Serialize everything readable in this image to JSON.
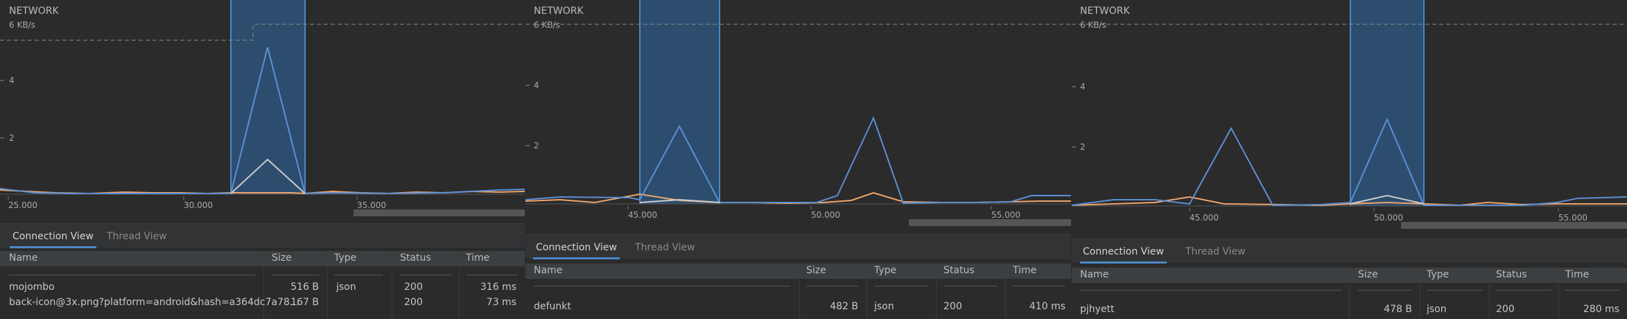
{
  "panels": [
    {
      "title": "NETWORK",
      "y_label": "6 KB/s",
      "y_ticks": [
        "4",
        "2"
      ],
      "x_ticks": [
        "25.000",
        "30.000",
        "35.000"
      ],
      "tabs": [
        "Connection View",
        "Thread View"
      ],
      "active_tab": "Connection View",
      "columns": [
        "Name",
        "Size",
        "Type",
        "Status",
        "Time"
      ],
      "rows": [
        {
          "name": "mojombo",
          "size": "516 B",
          "type": "json",
          "status": "200",
          "time": "316 ms"
        },
        {
          "name": "back-icon@3x.png?platform=android&hash=a364dc7a78...",
          "size": "167 B",
          "type": "",
          "status": "200",
          "time": "73 ms"
        }
      ],
      "colors": {
        "sent": "#5c8fd6",
        "received": "#f0a56b",
        "selection": "#2f5a85"
      }
    },
    {
      "title": "NETWORK",
      "y_label": "6 KB/s",
      "y_ticks": [
        "4",
        "2"
      ],
      "x_ticks": [
        "45.000",
        "50.000",
        "55.000"
      ],
      "tabs": [
        "Connection View",
        "Thread View"
      ],
      "active_tab": "Connection View",
      "columns": [
        "Name",
        "Size",
        "Type",
        "Status",
        "Time"
      ],
      "rows": [
        {
          "name": "defunkt",
          "size": "482 B",
          "type": "json",
          "status": "200",
          "time": "410 ms"
        }
      ],
      "colors": {
        "sent": "#5c8fd6",
        "received": "#f0a56b",
        "selection": "#2f5a85"
      }
    },
    {
      "title": "NETWORK",
      "y_label": "6 KB/s",
      "y_ticks": [
        "4",
        "2"
      ],
      "x_ticks": [
        "45.000",
        "50.000",
        "55.000"
      ],
      "tabs": [
        "Connection View",
        "Thread View"
      ],
      "active_tab": "Connection View",
      "columns": [
        "Name",
        "Size",
        "Type",
        "Status",
        "Time"
      ],
      "rows": [
        {
          "name": "pjhyett",
          "size": "478 B",
          "type": "json",
          "status": "200",
          "time": "280 ms"
        }
      ],
      "colors": {
        "sent": "#5c8fd6",
        "received": "#f0a56b",
        "selection": "#2f5a85"
      }
    }
  ]
}
